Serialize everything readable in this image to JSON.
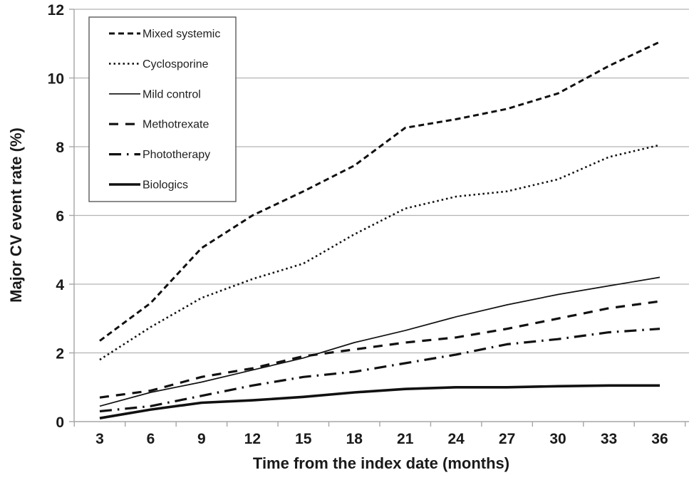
{
  "chart_data": {
    "type": "line",
    "title": "",
    "xlabel": "Time from the index date (months)",
    "ylabel": "Major CV event rate (%)",
    "x": [
      3,
      6,
      9,
      12,
      15,
      18,
      21,
      24,
      27,
      30,
      33,
      36
    ],
    "xlim": [
      3,
      36
    ],
    "ylim": [
      0,
      12
    ],
    "ytick_step": 2,
    "yticks": [
      0,
      2,
      4,
      6,
      8,
      10,
      12
    ],
    "grid": "horizontal-only",
    "legend_position": "top-left-inside-plot",
    "series": [
      {
        "name": "Mixed systemic",
        "style": "dash",
        "values": [
          2.35,
          3.45,
          5.05,
          6.0,
          6.7,
          7.45,
          8.55,
          8.8,
          9.1,
          9.55,
          10.35,
          11.05
        ]
      },
      {
        "name": "Cyclosporine",
        "style": "dot",
        "values": [
          1.8,
          2.75,
          3.6,
          4.15,
          4.6,
          5.45,
          6.2,
          6.55,
          6.7,
          7.05,
          7.7,
          8.05
        ]
      },
      {
        "name": "Mild control",
        "style": "solid-thin",
        "values": [
          0.45,
          0.85,
          1.15,
          1.5,
          1.85,
          2.3,
          2.65,
          3.05,
          3.4,
          3.7,
          3.95,
          4.2
        ]
      },
      {
        "name": "Methotrexate",
        "style": "long-dash",
        "values": [
          0.7,
          0.9,
          1.3,
          1.55,
          1.9,
          2.1,
          2.3,
          2.45,
          2.7,
          3.0,
          3.3,
          3.5
        ]
      },
      {
        "name": "Phototherapy",
        "style": "dash-dot",
        "values": [
          0.3,
          0.45,
          0.75,
          1.05,
          1.3,
          1.45,
          1.7,
          1.95,
          2.25,
          2.4,
          2.6,
          2.7
        ]
      },
      {
        "name": "Biologics",
        "style": "solid-thick",
        "values": [
          0.1,
          0.35,
          0.55,
          0.62,
          0.72,
          0.85,
          0.95,
          1.0,
          1.0,
          1.03,
          1.05,
          1.05
        ]
      }
    ],
    "colors": {
      "line": "#111111",
      "grid": "#b3b3b3",
      "axis": "#a6a6a6",
      "text": "#1a1a1a",
      "legend_border": "#4d4d4d",
      "background": "#ffffff"
    }
  }
}
